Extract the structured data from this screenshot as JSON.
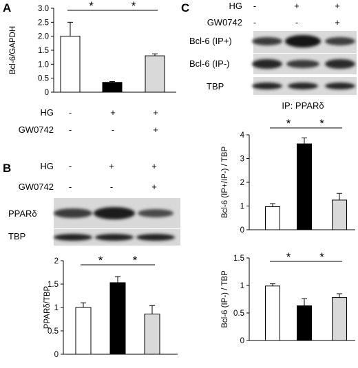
{
  "panels": {
    "A": {
      "letter": "A",
      "conditions": [
        {
          "label": "HG",
          "values": [
            "-",
            "+",
            "+"
          ]
        },
        {
          "label": "GW0742",
          "values": [
            "-",
            "-",
            "+"
          ]
        }
      ]
    },
    "B": {
      "letter": "B",
      "conditions": [
        {
          "label": "HG",
          "values": [
            "-",
            "+",
            "+"
          ]
        },
        {
          "label": "GW0742",
          "values": [
            "-",
            "-",
            "+"
          ]
        }
      ],
      "blots": [
        "PPARδ",
        "TBP"
      ]
    },
    "C": {
      "letter": "C",
      "conditions": [
        {
          "label": "HG",
          "values": [
            "-",
            "+",
            "+"
          ]
        },
        {
          "label": "GW0742",
          "values": [
            "-",
            "-",
            "+"
          ]
        }
      ],
      "blots": [
        "Bcl-6 (IP+)",
        "Bcl-6 (IP-)",
        "TBP"
      ],
      "ip_label": "IP: PPARδ"
    }
  },
  "colors": {
    "control": "#ffffff",
    "hg": "#000000",
    "gw": "#d9d9d9"
  },
  "significance_marker": "*",
  "chart_data": [
    {
      "type": "bar",
      "panel": "A",
      "ylabel": "Bcl-6/GAPDH",
      "ylim": [
        0,
        3
      ],
      "yticks": [
        "0",
        "0.5",
        "1.0",
        "1.5",
        "2.0",
        "2.5",
        "3.0"
      ],
      "values": [
        2.0,
        0.35,
        1.3
      ],
      "errors": [
        0.5,
        0.03,
        0.07
      ],
      "significance": [
        [
          0,
          1
        ],
        [
          1,
          2
        ]
      ]
    },
    {
      "type": "bar",
      "panel": "B",
      "ylabel": "PPARδ/TBP",
      "ylim": [
        0,
        2
      ],
      "yticks": [
        "0",
        "0.5",
        "1",
        "1.5",
        "2"
      ],
      "values": [
        1.0,
        1.53,
        0.86
      ],
      "errors": [
        0.1,
        0.13,
        0.18
      ],
      "significance": [
        [
          0,
          1
        ],
        [
          1,
          2
        ]
      ]
    },
    {
      "type": "bar",
      "panel": "C1",
      "ylabel": "Bcl-6 (IP+/IP-) / TBP",
      "ylim": [
        0,
        4
      ],
      "yticks": [
        "0",
        "1",
        "2",
        "3",
        "4"
      ],
      "values": [
        0.97,
        3.62,
        1.25
      ],
      "errors": [
        0.13,
        0.25,
        0.28
      ],
      "significance": [
        [
          0,
          1
        ],
        [
          1,
          2
        ]
      ]
    },
    {
      "type": "bar",
      "panel": "C2",
      "ylabel": "Bcl-6 (IP-) / TBP",
      "ylim": [
        0,
        1.5
      ],
      "yticks": [
        "0",
        "0.5",
        "1",
        "1.5"
      ],
      "values": [
        0.99,
        0.63,
        0.78
      ],
      "errors": [
        0.04,
        0.13,
        0.07
      ],
      "significance": [
        [
          0,
          1
        ],
        [
          1,
          2
        ]
      ]
    }
  ]
}
